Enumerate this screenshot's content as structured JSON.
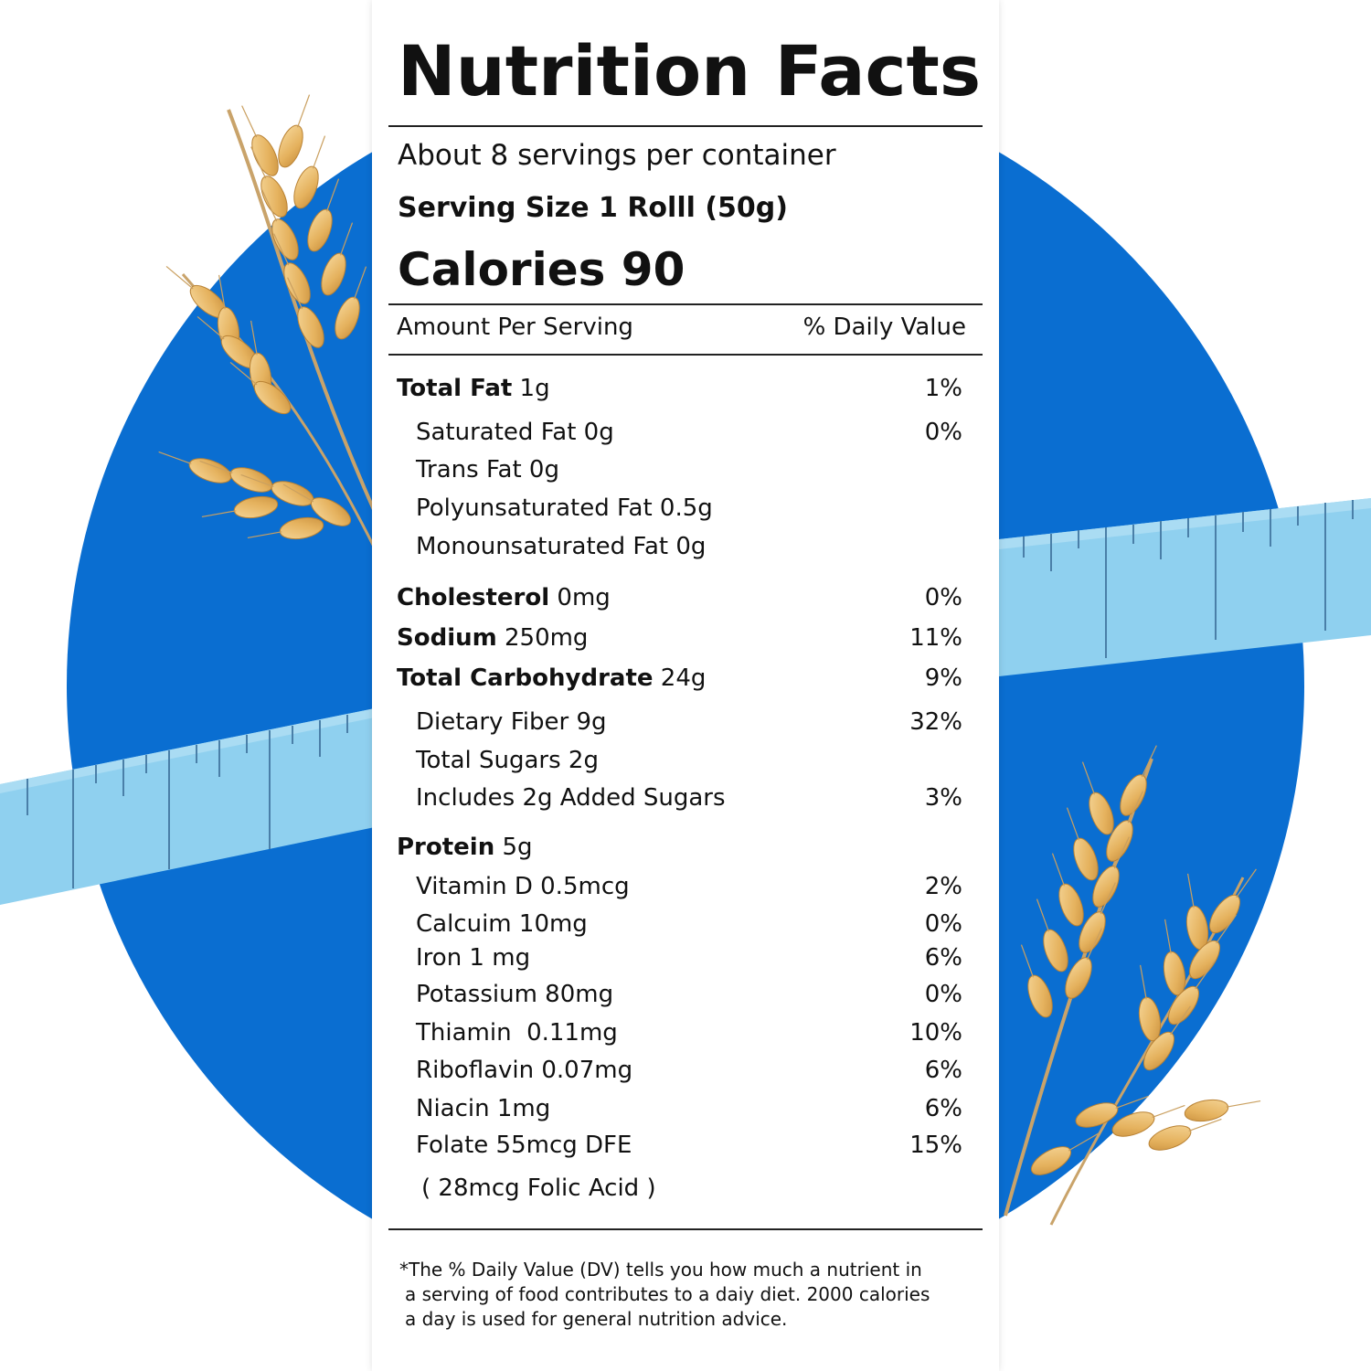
{
  "colors": {
    "circle": "#0a6ed1",
    "tape": "#8fd0ef",
    "wheat": "#e8b865"
  },
  "icons": [
    "wheat-stalk-illustration",
    "measuring-tape-illustration"
  ],
  "label": {
    "title": "Nutrition Facts",
    "servings_per_container": "About 8 servings per container",
    "serving_size": "Serving Size 1 Rolll (50g)",
    "calories": "Calories 90",
    "amount_per_serving": "Amount Per Serving",
    "daily_value_header": "% Daily Value",
    "rows": [
      {
        "bold": "Total Fat",
        "text": " 1g",
        "dv": "1%"
      },
      {
        "bold": "",
        "text": "Saturated Fat 0g",
        "dv": "0%"
      },
      {
        "bold": "",
        "text": "Trans Fat 0g",
        "dv": ""
      },
      {
        "bold": "",
        "text": "Polyunsaturated Fat 0.5g",
        "dv": ""
      },
      {
        "bold": "",
        "text": "Monounsaturated Fat 0g",
        "dv": ""
      },
      {
        "bold": "Cholesterol",
        "text": " 0mg",
        "dv": "0%"
      },
      {
        "bold": "Sodium",
        "text": " 250mg",
        "dv": "11%"
      },
      {
        "bold": "Total Carbohydrate",
        "text": " 24g",
        "dv": "9%"
      },
      {
        "bold": "",
        "text": "Dietary Fiber 9g",
        "dv": "32%"
      },
      {
        "bold": "",
        "text": "Total Sugars 2g",
        "dv": ""
      },
      {
        "bold": "",
        "text": "Includes 2g Added Sugars",
        "dv": "3%"
      },
      {
        "bold": "Protein",
        "text": " 5g",
        "dv": ""
      },
      {
        "bold": "",
        "text": "Vitamin D 0.5mcg",
        "dv": "2%"
      },
      {
        "bold": "",
        "text": "Calcuim 10mg",
        "dv": "0%"
      },
      {
        "bold": "",
        "text": "Iron 1 mg",
        "dv": "6%"
      },
      {
        "bold": "",
        "text": "Potassium 80mg",
        "dv": "0%"
      },
      {
        "bold": "",
        "text": "Thiamin  0.11mg",
        "dv": "10%"
      },
      {
        "bold": "",
        "text": "Riboflavin 0.07mg",
        "dv": "6%"
      },
      {
        "bold": "",
        "text": "Niacin 1mg",
        "dv": "6%"
      },
      {
        "bold": "",
        "text": "Folate 55mcg DFE",
        "dv": "15%"
      },
      {
        "bold": "",
        "text": "( 28mcg Folic Acid )",
        "dv": ""
      }
    ],
    "footnote": [
      "*The % Daily Value (DV) tells you how much a nutrient in",
      "a serving of food contributes to a daiy diet. 2000 calories",
      "a day is used for general nutrition advice."
    ]
  }
}
